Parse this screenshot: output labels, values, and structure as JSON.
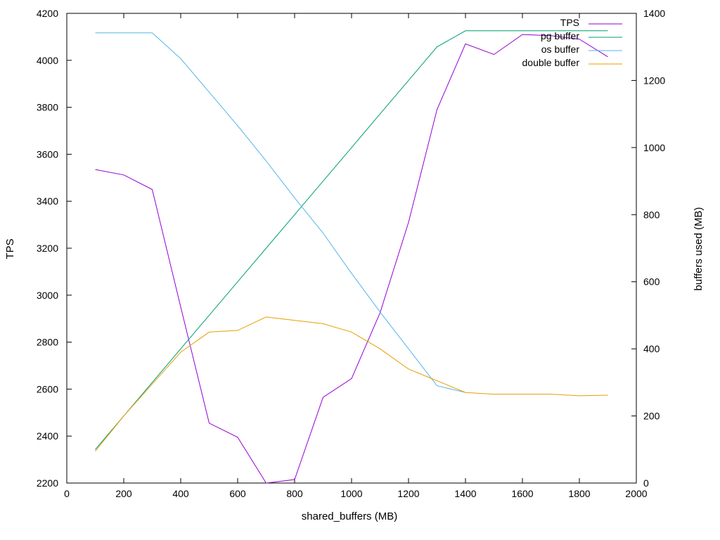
{
  "chart_data": {
    "type": "line",
    "title": "",
    "xlabel": "shared_buffers (MB)",
    "ylabel": "TPS",
    "y2label": "buffers used (MB)",
    "xlim": [
      0,
      2000
    ],
    "ylim": [
      2200,
      4200
    ],
    "y2lim": [
      0,
      1400
    ],
    "xticks": [
      0,
      200,
      400,
      600,
      800,
      1000,
      1200,
      1400,
      1600,
      1800,
      2000
    ],
    "yticks": [
      2200,
      2400,
      2600,
      2800,
      3000,
      3200,
      3400,
      3600,
      3800,
      4000,
      4200
    ],
    "y2ticks": [
      0,
      200,
      400,
      600,
      800,
      1000,
      1200,
      1400
    ],
    "grid": false,
    "legend_position": "top-right",
    "x": [
      100,
      200,
      300,
      400,
      500,
      600,
      700,
      800,
      900,
      1000,
      1100,
      1200,
      1300,
      1400,
      1500,
      1600,
      1700,
      1800,
      1900
    ],
    "series": [
      {
        "name": "TPS",
        "axis": "y",
        "color": "#9400d3",
        "values": [
          3535,
          3512,
          3450,
          2950,
          2455,
          2395,
          2200,
          2215,
          2565,
          2645,
          2925,
          3310,
          3790,
          4070,
          4025,
          4110,
          4105,
          4090,
          4015
        ]
      },
      {
        "name": "pg buffer",
        "axis": "y2",
        "color": "#009e73",
        "values": [
          100,
          200,
          300,
          400,
          500,
          600,
          700,
          800,
          900,
          1000,
          1100,
          1200,
          1300,
          1348,
          1348,
          1348,
          1348,
          1348,
          1348
        ]
      },
      {
        "name": "os buffer",
        "axis": "y2",
        "color": "#56b4e9",
        "values": [
          1342,
          1342,
          1342,
          1265,
          1165,
          1065,
          960,
          850,
          745,
          625,
          510,
          400,
          290,
          270,
          null,
          null,
          null,
          null,
          null
        ]
      },
      {
        "name": "double buffer",
        "axis": "y2",
        "color": "#e69f00",
        "values": [
          95,
          200,
          295,
          390,
          450,
          455,
          495,
          485,
          475,
          450,
          400,
          340,
          305,
          270,
          265,
          265,
          265,
          260,
          262
        ]
      }
    ]
  }
}
